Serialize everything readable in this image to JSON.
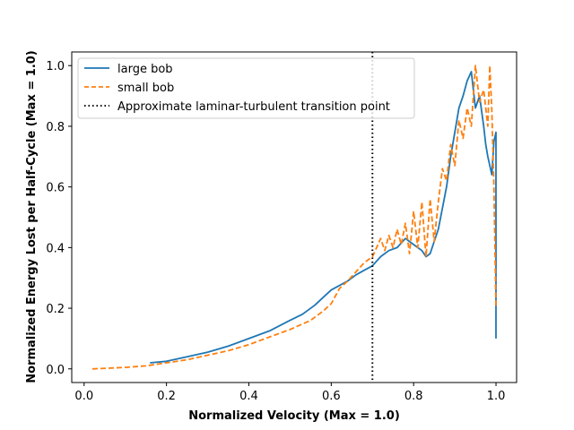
{
  "chart_data": {
    "type": "line",
    "title": "",
    "xlabel": "Normalized Velocity (Max = 1.0)",
    "ylabel": "Normalized Energy Lost per Half-Cycle (Max = 1.0)",
    "xlim": [
      -0.03,
      1.05
    ],
    "ylim": [
      -0.045,
      1.045
    ],
    "xticks": [
      0.0,
      0.2,
      0.4,
      0.6,
      0.8,
      1.0
    ],
    "xtick_labels": [
      "0.0",
      "0.2",
      "0.4",
      "0.6",
      "0.8",
      "1.0"
    ],
    "yticks": [
      0.0,
      0.2,
      0.4,
      0.6,
      0.8,
      1.0
    ],
    "ytick_labels": [
      "0.0",
      "0.2",
      "0.4",
      "0.6",
      "0.8",
      "1.0"
    ],
    "grid": false,
    "legend_position": "top-left",
    "series": [
      {
        "name": "large bob",
        "color": "#1f77b4",
        "style": "solid",
        "points": [
          [
            0.16,
            0.02
          ],
          [
            0.2,
            0.025
          ],
          [
            0.25,
            0.04
          ],
          [
            0.3,
            0.055
          ],
          [
            0.35,
            0.075
          ],
          [
            0.4,
            0.1
          ],
          [
            0.45,
            0.125
          ],
          [
            0.5,
            0.16
          ],
          [
            0.53,
            0.18
          ],
          [
            0.56,
            0.21
          ],
          [
            0.58,
            0.235
          ],
          [
            0.6,
            0.26
          ],
          [
            0.62,
            0.275
          ],
          [
            0.64,
            0.29
          ],
          [
            0.66,
            0.31
          ],
          [
            0.68,
            0.325
          ],
          [
            0.7,
            0.34
          ],
          [
            0.72,
            0.37
          ],
          [
            0.74,
            0.39
          ],
          [
            0.76,
            0.4
          ],
          [
            0.78,
            0.43
          ],
          [
            0.8,
            0.41
          ],
          [
            0.82,
            0.39
          ],
          [
            0.83,
            0.37
          ],
          [
            0.84,
            0.38
          ],
          [
            0.85,
            0.42
          ],
          [
            0.86,
            0.46
          ],
          [
            0.87,
            0.53
          ],
          [
            0.88,
            0.6
          ],
          [
            0.89,
            0.7
          ],
          [
            0.9,
            0.78
          ],
          [
            0.91,
            0.86
          ],
          [
            0.92,
            0.9
          ],
          [
            0.93,
            0.95
          ],
          [
            0.94,
            0.98
          ],
          [
            0.95,
            0.86
          ],
          [
            0.96,
            0.9
          ],
          [
            0.97,
            0.8
          ],
          [
            0.975,
            0.74
          ],
          [
            0.98,
            0.7
          ],
          [
            0.99,
            0.64
          ],
          [
            0.995,
            0.75
          ],
          [
            1.0,
            0.78
          ],
          [
            1.0,
            0.1
          ]
        ]
      },
      {
        "name": "small bob",
        "color": "#ff7f0e",
        "style": "dashed",
        "points": [
          [
            0.02,
            0.0
          ],
          [
            0.1,
            0.005
          ],
          [
            0.15,
            0.01
          ],
          [
            0.2,
            0.02
          ],
          [
            0.25,
            0.03
          ],
          [
            0.3,
            0.045
          ],
          [
            0.35,
            0.06
          ],
          [
            0.4,
            0.08
          ],
          [
            0.45,
            0.105
          ],
          [
            0.5,
            0.13
          ],
          [
            0.55,
            0.16
          ],
          [
            0.58,
            0.19
          ],
          [
            0.6,
            0.215
          ],
          [
            0.62,
            0.265
          ],
          [
            0.64,
            0.29
          ],
          [
            0.66,
            0.32
          ],
          [
            0.68,
            0.35
          ],
          [
            0.7,
            0.37
          ],
          [
            0.71,
            0.4
          ],
          [
            0.72,
            0.43
          ],
          [
            0.73,
            0.39
          ],
          [
            0.74,
            0.44
          ],
          [
            0.75,
            0.4
          ],
          [
            0.76,
            0.46
          ],
          [
            0.77,
            0.41
          ],
          [
            0.78,
            0.48
          ],
          [
            0.79,
            0.38
          ],
          [
            0.8,
            0.52
          ],
          [
            0.81,
            0.4
          ],
          [
            0.82,
            0.55
          ],
          [
            0.83,
            0.37
          ],
          [
            0.84,
            0.56
          ],
          [
            0.85,
            0.42
          ],
          [
            0.86,
            0.55
          ],
          [
            0.87,
            0.66
          ],
          [
            0.88,
            0.62
          ],
          [
            0.89,
            0.74
          ],
          [
            0.9,
            0.67
          ],
          [
            0.91,
            0.82
          ],
          [
            0.92,
            0.76
          ],
          [
            0.93,
            0.86
          ],
          [
            0.94,
            0.8
          ],
          [
            0.95,
            1.0
          ],
          [
            0.96,
            0.88
          ],
          [
            0.97,
            0.92
          ],
          [
            0.98,
            0.8
          ],
          [
            0.985,
            1.0
          ],
          [
            0.99,
            0.85
          ],
          [
            0.995,
            0.6
          ],
          [
            1.0,
            0.2
          ]
        ]
      }
    ],
    "vlines": [
      {
        "name": "Approximate laminar-turbulent transition point",
        "x": 0.7,
        "color": "#000000",
        "style": "dotted"
      }
    ]
  }
}
